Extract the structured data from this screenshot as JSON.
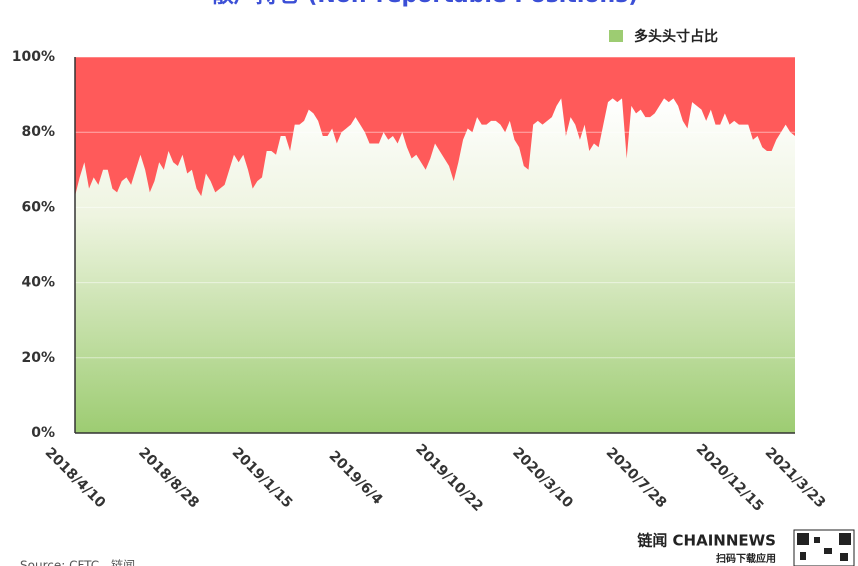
{
  "chart_data": {
    "type": "area",
    "title": "散户持仓 (Non-reportable Positions)",
    "source": "Source: CFTC，链闻",
    "brand": "链闻 CHAINNEWS",
    "brand_subtitle": "扫码下载应用",
    "categories": [
      "2018/4/10",
      null,
      null,
      null,
      null,
      null,
      null,
      null,
      null,
      null,
      null,
      null,
      null,
      null,
      null,
      null,
      null,
      null,
      null,
      null,
      "2018/8/28",
      null,
      null,
      null,
      null,
      null,
      null,
      null,
      null,
      null,
      null,
      null,
      null,
      null,
      null,
      null,
      null,
      null,
      null,
      null,
      "2019/1/15",
      null,
      null,
      null,
      null,
      null,
      null,
      null,
      null,
      null,
      null,
      null,
      null,
      null,
      null,
      null,
      null,
      null,
      null,
      null,
      "2019/6/4",
      null,
      null,
      null,
      null,
      null,
      null,
      null,
      null,
      null,
      null,
      null,
      null,
      null,
      null,
      null,
      null,
      null,
      null,
      null,
      "2019/10/22",
      null,
      null,
      null,
      null,
      null,
      null,
      null,
      null,
      null,
      null,
      null,
      null,
      null,
      null,
      null,
      null,
      null,
      null,
      null,
      "2020/3/10",
      null,
      null,
      null,
      null,
      null,
      null,
      null,
      null,
      null,
      null,
      null,
      null,
      null,
      null,
      null,
      null,
      null,
      null,
      null,
      "2020/7/28",
      null,
      null,
      null,
      null,
      null,
      null,
      null,
      null,
      null,
      null,
      null,
      null,
      null,
      null,
      null,
      null,
      null,
      null,
      null,
      "2020/12/15",
      null,
      null,
      null,
      null,
      null,
      null,
      null,
      null,
      null,
      null,
      null,
      null,
      null,
      "2021/3/23"
    ],
    "series": [
      {
        "name": "多头头寸占比",
        "color": "#9dcc72",
        "values": [
          63,
          68,
          72,
          65,
          68,
          66,
          70,
          70,
          65,
          64,
          67,
          68,
          66,
          70,
          74,
          70,
          64,
          67,
          72,
          70,
          75,
          72,
          71,
          74,
          69,
          70,
          65,
          63,
          69,
          67,
          64,
          65,
          66,
          70,
          74,
          72,
          74,
          70,
          65,
          67,
          68,
          75,
          75,
          74,
          79,
          79,
          75,
          82,
          82,
          83,
          86,
          85,
          83,
          79,
          79,
          81,
          77,
          80,
          81,
          82,
          84,
          82,
          80,
          77,
          77,
          77,
          80,
          78,
          79,
          77,
          80,
          76,
          73,
          74,
          72,
          70,
          73,
          77,
          75,
          73,
          71,
          67,
          72,
          78,
          81,
          80,
          84,
          82,
          82,
          83,
          83,
          82,
          80,
          83,
          78,
          76,
          71,
          70,
          82,
          83,
          82,
          83,
          84,
          87,
          89,
          79,
          84,
          82,
          78,
          82,
          75,
          77,
          76,
          82,
          88,
          89,
          88,
          89,
          73,
          87,
          85,
          86,
          84,
          84,
          85,
          87,
          89,
          88,
          89,
          87,
          83,
          81,
          88,
          87,
          86,
          83,
          86,
          82,
          82,
          85,
          82,
          83,
          82,
          82,
          82,
          78,
          79,
          76,
          75,
          75,
          78,
          80,
          82,
          80,
          79
        ]
      }
    ],
    "remainder_color": "#ff5a5a",
    "ylim": [
      0,
      100
    ],
    "yticks": [
      {
        "value": 0,
        "label": "0%"
      },
      {
        "value": 20,
        "label": "20%"
      },
      {
        "value": 40,
        "label": "40%"
      },
      {
        "value": 60,
        "label": "60%"
      },
      {
        "value": 80,
        "label": "80%"
      },
      {
        "value": 100,
        "label": "100%"
      }
    ],
    "grid": true,
    "legend": "top-right"
  }
}
